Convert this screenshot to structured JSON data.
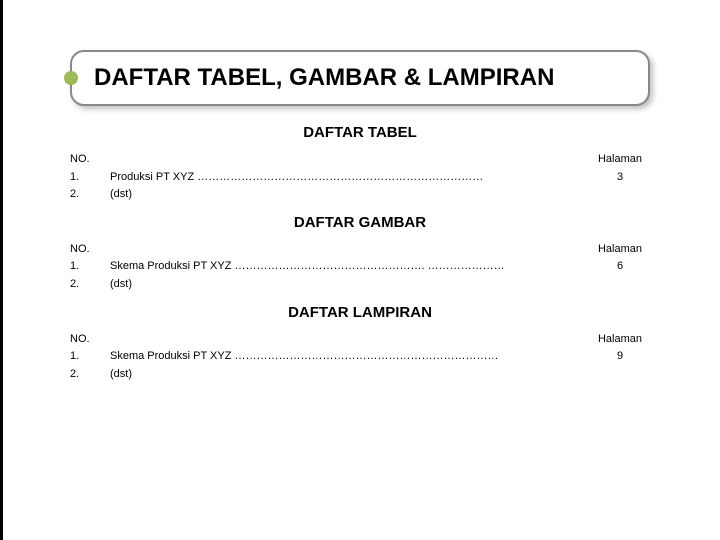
{
  "title": "DAFTAR TABEL, GAMBAR & LAMPIRAN",
  "col_headers": {
    "no": "NO.",
    "page": "Halaman"
  },
  "sections": {
    "tabel": {
      "heading": "DAFTAR TABEL",
      "rows": {
        "r1": {
          "no": "1.",
          "desc": "Produksi PT XYZ ……………………………………………………………………",
          "page": "3"
        },
        "r2": {
          "no": "2.",
          "desc": "(dst)",
          "page": ""
        }
      }
    },
    "gambar": {
      "heading": "DAFTAR GAMBAR",
      "rows": {
        "r1": {
          "no": "1.",
          "desc": "Skema Produksi PT XYZ ……………………………………………. …………………",
          "page": "6"
        },
        "r2": {
          "no": "2.",
          "desc": "(dst)",
          "page": ""
        }
      }
    },
    "lampiran": {
      "heading": "DAFTAR LAMPIRAN",
      "rows": {
        "r1": {
          "no": "1.",
          "desc": "Skema Produksi PT XYZ ………………………………………………………………",
          "page": "9"
        },
        "r2": {
          "no": "2.",
          "desc": "(dst)",
          "page": ""
        }
      }
    }
  }
}
